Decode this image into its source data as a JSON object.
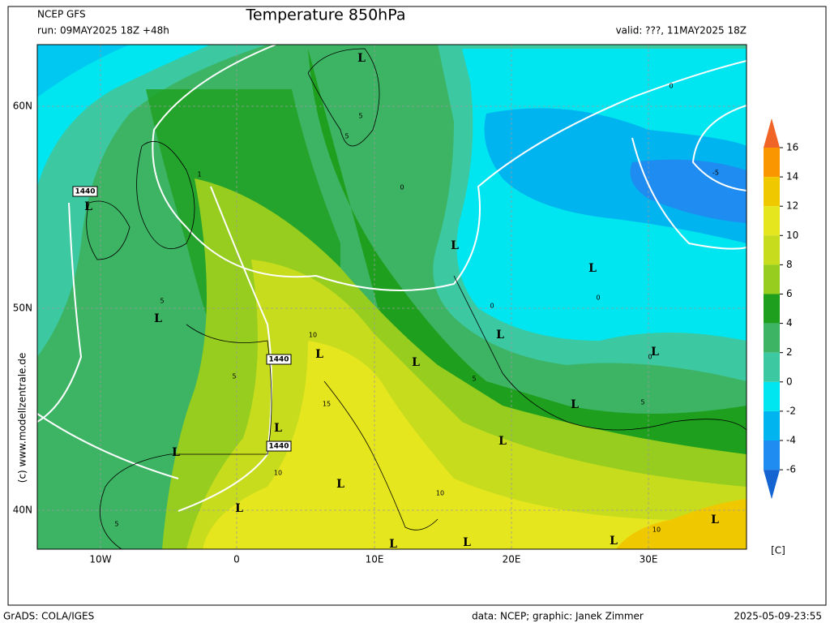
{
  "header": {
    "model": "NCEP GFS",
    "run": "run: 09MAY2025 18Z +48h",
    "title": "Temperature 850hPa",
    "valid": "valid: ???, 11MAY2025 18Z"
  },
  "map": {
    "lat_labels": [
      "60N",
      "50N",
      "40N"
    ],
    "lon_labels": [
      "10W",
      "0",
      "10E",
      "20E",
      "30E"
    ],
    "lows": [
      "L",
      "L",
      "L",
      "L",
      "L",
      "L",
      "L",
      "L",
      "L",
      "L",
      "L",
      "L",
      "L",
      "L",
      "L",
      "L",
      "L",
      "L",
      "L"
    ],
    "height_labels": [
      "1440",
      "1440",
      "1440"
    ],
    "contour_labels": [
      "0",
      "0",
      "0",
      "0",
      "0",
      "-5",
      "5",
      "5",
      "5",
      "5",
      "5",
      "5",
      "5",
      "10",
      "10",
      "10",
      "10",
      "15",
      "1"
    ],
    "watermark": "(c) www.modellzentrale.de"
  },
  "colorbar": {
    "ticks": [
      16,
      14,
      12,
      10,
      8,
      6,
      4,
      2,
      0,
      -2,
      -4,
      -6
    ],
    "colors": [
      "#f06428",
      "#fa9600",
      "#f0c800",
      "#e6e61e",
      "#c8dc1e",
      "#96cd1e",
      "#1ea01e",
      "#3cb464",
      "#3cc8a0",
      "#00e6f0",
      "#00b4f0",
      "#1e8cf0",
      "#1464d2"
    ],
    "unit": "[C]"
  },
  "footer": {
    "left": "GrADS: COLA/IGES",
    "center": "data: NCEP; graphic: Janek Zimmer",
    "right": "2025-05-09-23:55"
  }
}
